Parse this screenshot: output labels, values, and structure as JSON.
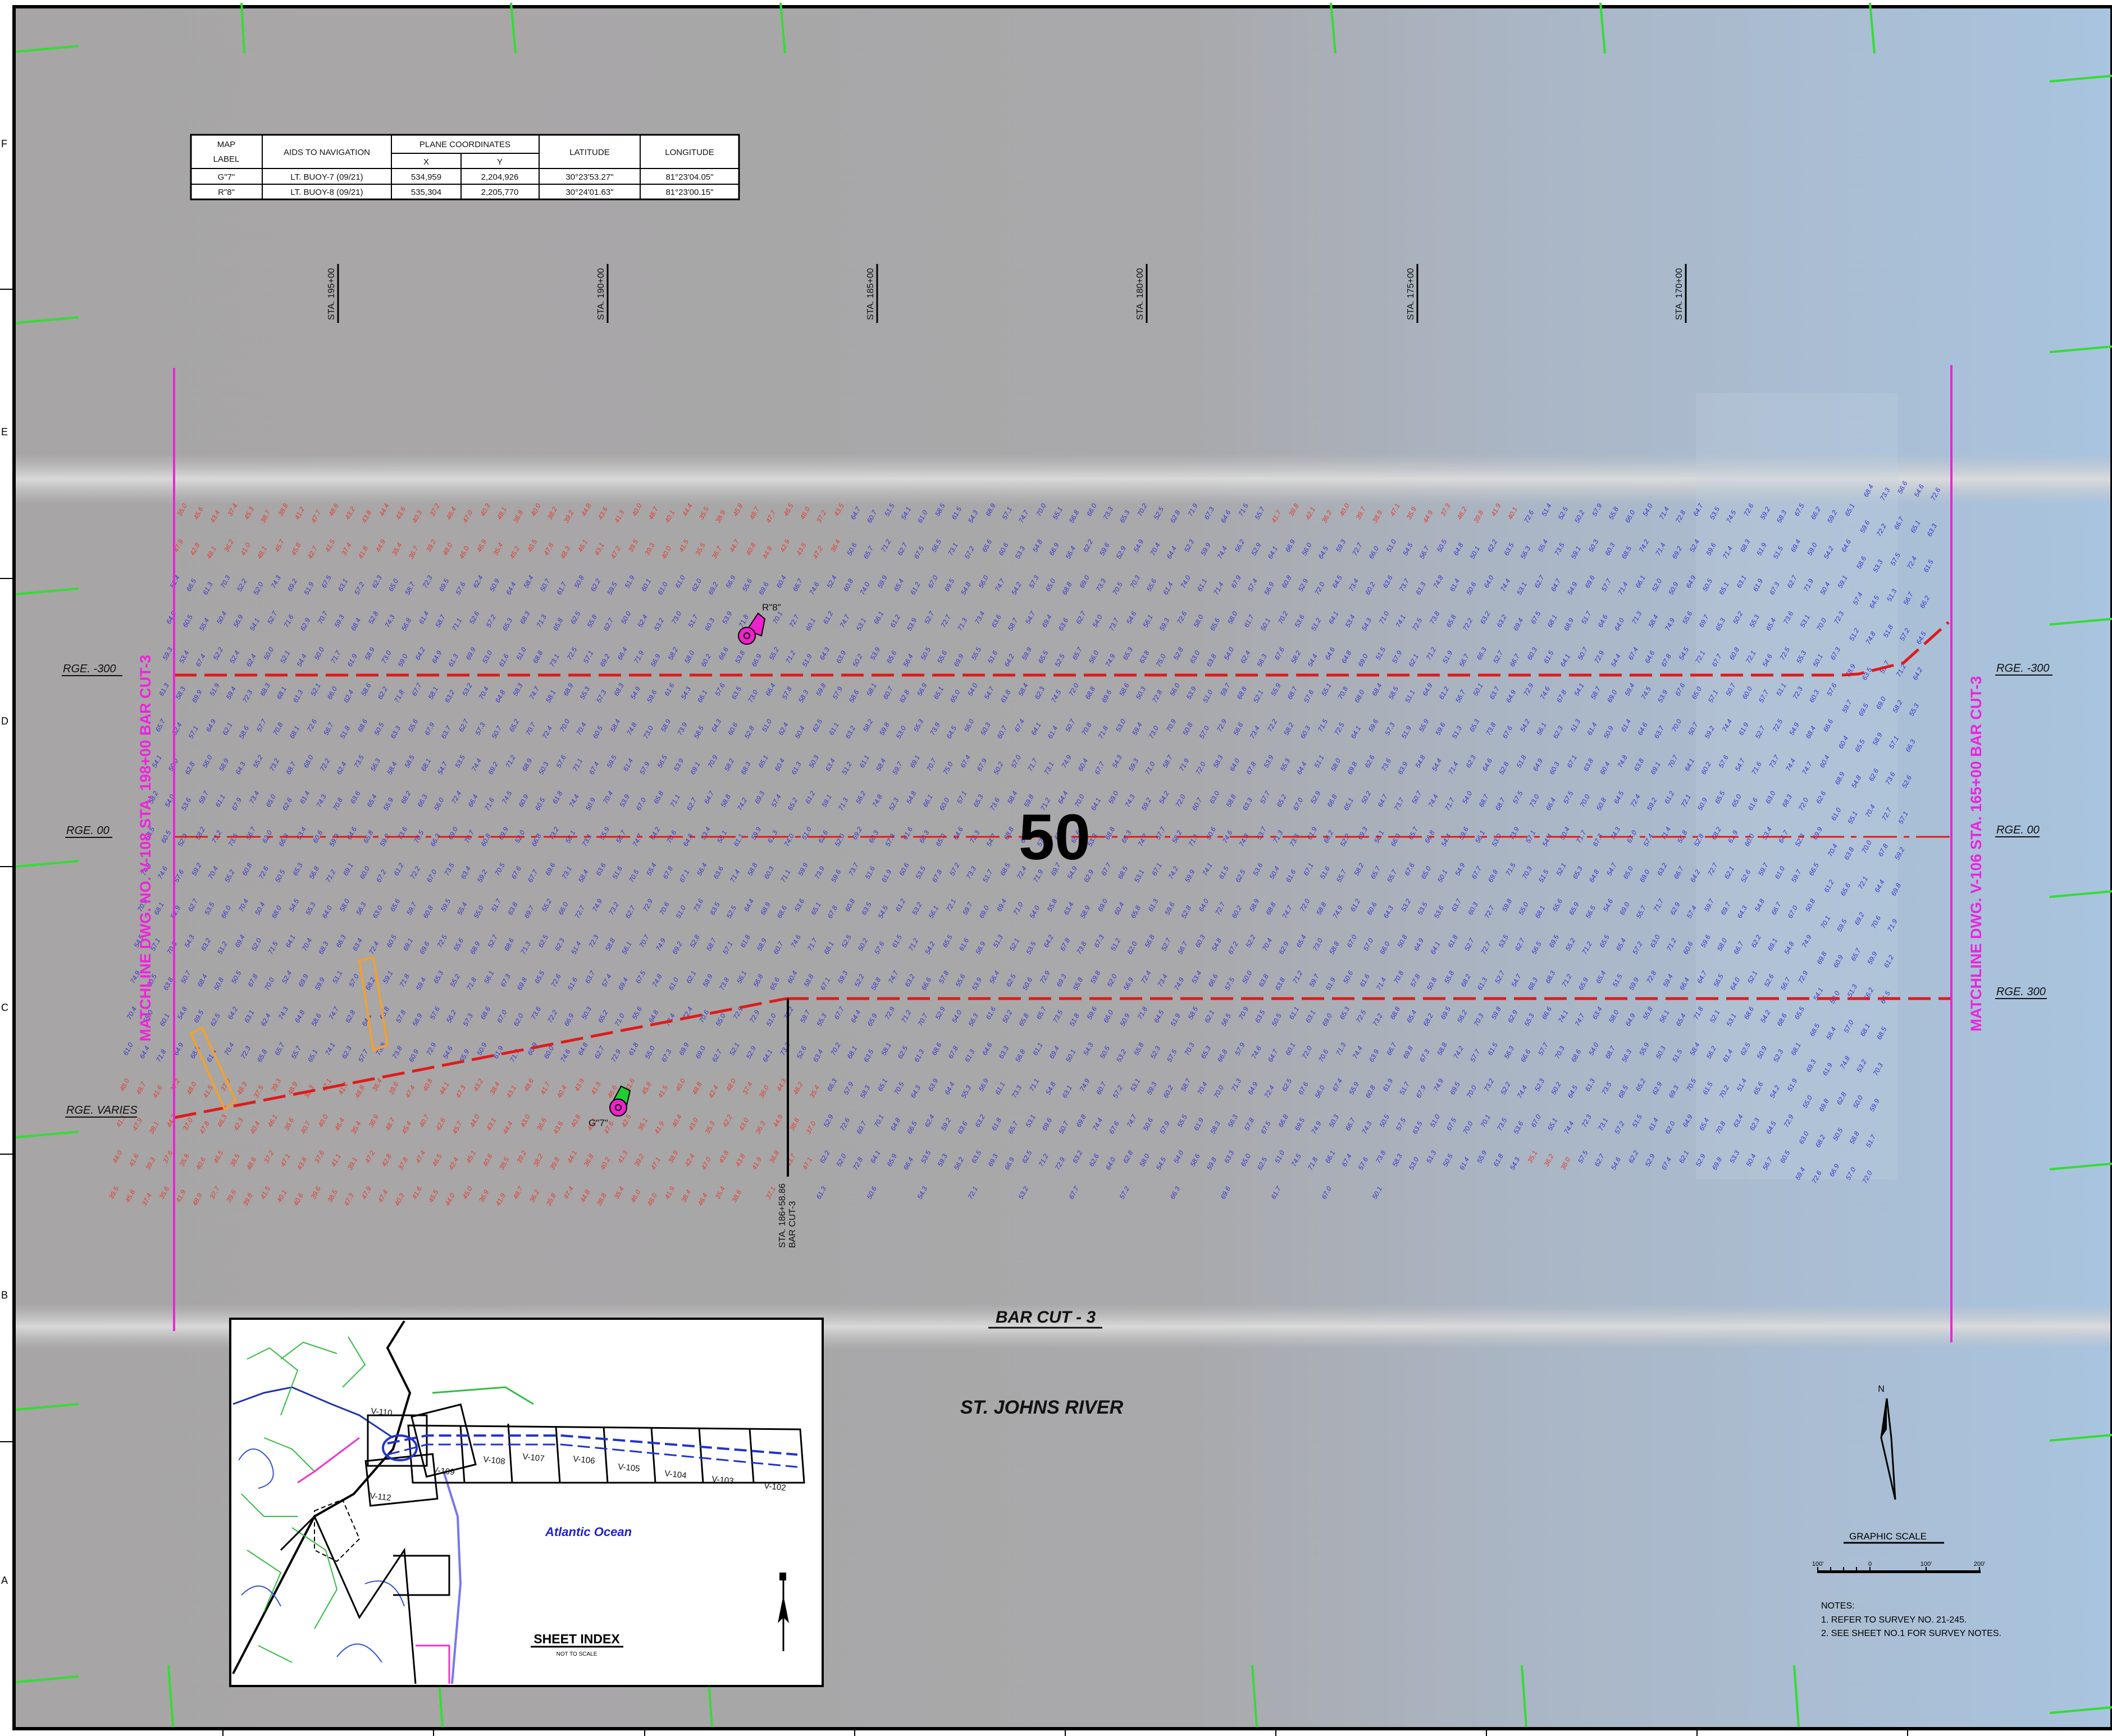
{
  "sheet_number": "50",
  "nav_table": {
    "headers": {
      "map_label": [
        "MAP",
        "LABEL"
      ],
      "aids": "AIDS TO NAVIGATION",
      "plane": "PLANE COORDINATES",
      "x": "X",
      "y": "Y",
      "latitude": "LATITUDE",
      "longitude": "LONGITUDE"
    },
    "rows": [
      {
        "label": "G\"7\"",
        "aid": "LT. BUOY-7 (09/21)",
        "x": "534,959",
        "y": "2,204,926",
        "lat": "30°23'53.27\"",
        "lon": "81°23'04.05\""
      },
      {
        "label": "R\"8\"",
        "aid": "LT. BUOY-8 (09/21)",
        "x": "535,304",
        "y": "2,205,770",
        "lat": "30°24'01.63\"",
        "lon": "81°23'00.15\""
      }
    ]
  },
  "stations": [
    "STA. 195+00",
    "STA. 190+00",
    "STA. 185+00",
    "STA. 180+00",
    "STA. 175+00",
    "STA. 170+00"
  ],
  "ranges_left": [
    "RGE. -300",
    "RGE. 00",
    "RGE. VARIES"
  ],
  "ranges_right": [
    "RGE. -300",
    "RGE. 00",
    "RGE. 300"
  ],
  "matchline_left": "MATCHLINE DWG. NO. V-108 STA. 198+00 BAR CUT-3",
  "matchline_right": "MATCHLINE DWG. V-106 STA. 165+00 BAR CUT-3",
  "bar_cut_label": "BAR CUT - 3",
  "station_marker": [
    "STA. 186+58.86",
    "BAR CUT-3"
  ],
  "river_label": "ST. JOHNS RIVER",
  "buoys": {
    "green": "G\"7\"",
    "red": "R\"8\""
  },
  "sheet_index": {
    "title": "SHEET INDEX",
    "subtitle": "NOT TO SCALE",
    "ocean": "Atlantic Ocean",
    "sheets": [
      "V-110",
      "V-109",
      "V-108",
      "V-107",
      "V-106",
      "V-105",
      "V-104",
      "V-103",
      "V-102",
      "V-112"
    ]
  },
  "north_arrow": "N",
  "graphic_scale": {
    "title": "GRAPHIC SCALE",
    "ticks": [
      "100'",
      "0",
      "100'",
      "200'"
    ]
  },
  "notes": {
    "title": "NOTES:",
    "lines": [
      "1. REFER TO SURVEY NO. 21-245.",
      "2. SEE SHEET NO.1 FOR SURVEY NOTES."
    ]
  },
  "border_letters": [
    "F",
    "E",
    "D",
    "C",
    "B",
    "A"
  ],
  "colors": {
    "deep_soundings": "#3333cc",
    "shallow_soundings": "#e23b2e",
    "matchline": "#ee22dd",
    "channel_limit": "#e01a1a",
    "grid_ticks": "#33dd33",
    "buoy_green": "#22cc33",
    "buoy_red": "#ee22cc",
    "water": "#a6a4a4"
  }
}
